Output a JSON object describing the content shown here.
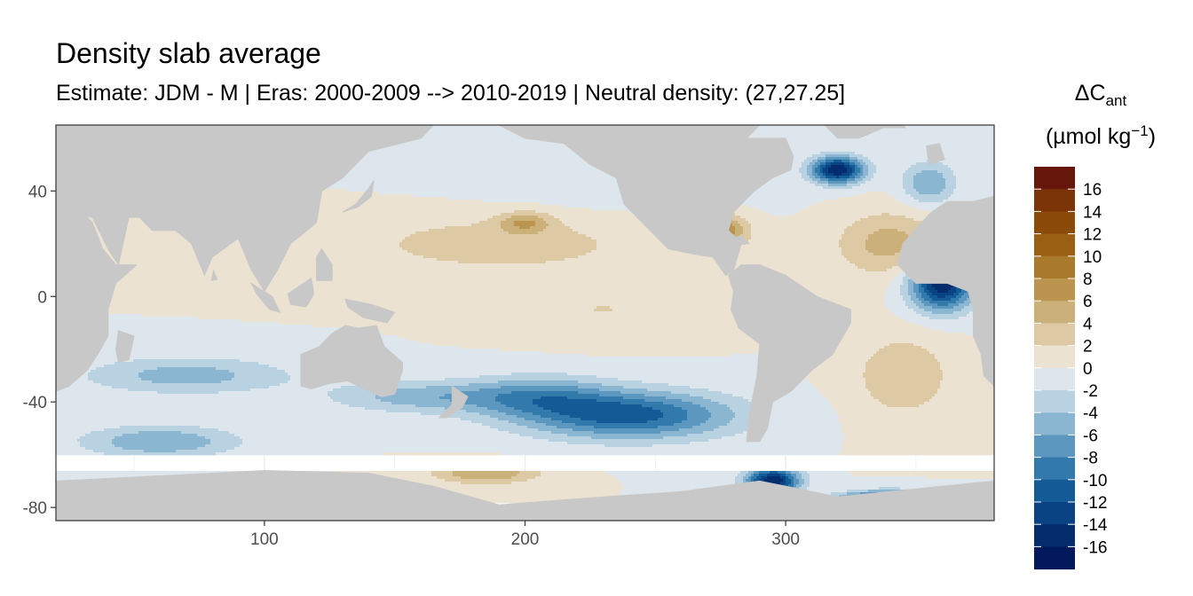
{
  "chart_data": {
    "type": "heatmap",
    "title": "Density slab average",
    "subtitle": "Estimate: JDM - M | Eras: 2000-2009 --> 2010-2019 | Neutral density: (27,27.25]",
    "xlabel": "",
    "ylabel": "",
    "xlim": [
      20,
      380
    ],
    "ylim": [
      -85,
      65
    ],
    "x_ticks": [
      100,
      200,
      300
    ],
    "y_ticks": [
      -80,
      -40,
      0,
      40
    ],
    "grid": true,
    "land_color": "#c8c8c8",
    "legend": {
      "placement": "right",
      "title_main": "ΔC",
      "title_sub": "ant",
      "title_units": "(µmol kg",
      "title_exp": "−1",
      "title_close": ")",
      "breaks": [
        16,
        14,
        12,
        10,
        8,
        6,
        4,
        2,
        0,
        -2,
        -4,
        -6,
        -8,
        -10,
        -12,
        -14,
        -16
      ],
      "colors": [
        "#67170a",
        "#7b3308",
        "#8a4a08",
        "#9a5f12",
        "#aa7a2c",
        "#bb9550",
        "#ccb07a",
        "#ddc9a4",
        "#ece2d2",
        "#dce6ec",
        "#b8d2e2",
        "#8ab6d2",
        "#5c97c0",
        "#3279ac",
        "#125b96",
        "#0a4383",
        "#052d6e",
        "#021a5c"
      ]
    },
    "fields": [
      {
        "x": 240,
        "y": -45,
        "v": -11,
        "sx": 40,
        "sy": 9
      },
      {
        "x": 205,
        "y": -38,
        "v": -6,
        "sx": 28,
        "sy": 8
      },
      {
        "x": 160,
        "y": -38,
        "v": -5,
        "sx": 35,
        "sy": 6
      },
      {
        "x": 70,
        "y": -30,
        "v": -5,
        "sx": 40,
        "sy": 7
      },
      {
        "x": 60,
        "y": -55,
        "v": -6,
        "sx": 30,
        "sy": 6
      },
      {
        "x": 360,
        "y": 5,
        "v": -16,
        "sx": 12,
        "sy": 10
      },
      {
        "x": 320,
        "y": 48,
        "v": -16,
        "sx": 10,
        "sy": 5
      },
      {
        "x": 355,
        "y": 43,
        "v": -6,
        "sx": 10,
        "sy": 8
      },
      {
        "x": 295,
        "y": -70,
        "v": -16,
        "sx": 10,
        "sy": 5
      },
      {
        "x": 340,
        "y": -77,
        "v": -16,
        "sx": 18,
        "sy": 3
      },
      {
        "x": 190,
        "y": 20,
        "v": 3,
        "sx": 60,
        "sy": 12
      },
      {
        "x": 200,
        "y": 28,
        "v": 5,
        "sx": 10,
        "sy": 4
      },
      {
        "x": 275,
        "y": 25,
        "v": 8,
        "sx": 10,
        "sy": 6
      },
      {
        "x": 340,
        "y": 20,
        "v": 5,
        "sx": 20,
        "sy": 12
      },
      {
        "x": 345,
        "y": -30,
        "v": 4,
        "sx": 18,
        "sy": 15
      },
      {
        "x": 185,
        "y": -67,
        "v": 6,
        "sx": 20,
        "sy": 4
      },
      {
        "x": 230,
        "y": -5,
        "v": 2,
        "sx": 30,
        "sy": 10
      },
      {
        "x": 230,
        "y": 40,
        "v": -1,
        "sx": 60,
        "sy": 10
      }
    ]
  }
}
